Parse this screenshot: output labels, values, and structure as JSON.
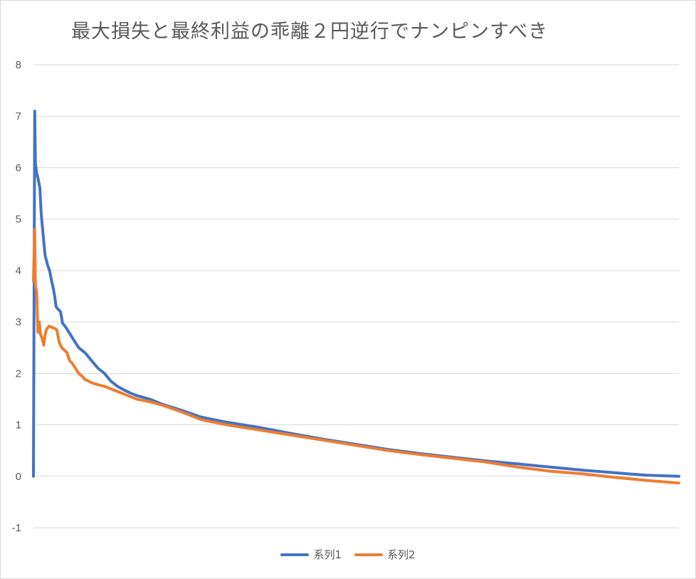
{
  "chart_data": {
    "type": "line",
    "title": "最大損失と最終利益の乖離２円逆行でナンピンすべき",
    "xlabel": "",
    "ylabel": "",
    "ylim": [
      -1,
      8
    ],
    "xlim": [
      0,
      1000
    ],
    "yticks": [
      "8",
      "7",
      "6",
      "5",
      "4",
      "3",
      "2",
      "1",
      "0",
      "-1"
    ],
    "grid": true,
    "legend_position": "bottom",
    "series": [
      {
        "name": "系列1",
        "color": "#4472c4",
        "x": [
          0,
          2,
          3,
          5,
          7,
          10,
          12,
          15,
          18,
          20,
          22,
          25,
          28,
          30,
          33,
          35,
          38,
          42,
          45,
          50,
          55,
          60,
          65,
          70,
          80,
          90,
          100,
          110,
          120,
          130,
          140,
          150,
          160,
          180,
          200,
          230,
          260,
          300,
          350,
          400,
          450,
          500,
          550,
          600,
          650,
          700,
          750,
          800,
          850,
          900,
          950,
          1000
        ],
        "y": [
          0,
          7.1,
          6.1,
          5.9,
          5.8,
          5.6,
          5.1,
          4.7,
          4.3,
          4.2,
          4.1,
          4.0,
          3.8,
          3.7,
          3.5,
          3.3,
          3.25,
          3.2,
          2.98,
          2.9,
          2.8,
          2.7,
          2.6,
          2.5,
          2.4,
          2.25,
          2.1,
          2.0,
          1.85,
          1.75,
          1.68,
          1.62,
          1.57,
          1.5,
          1.4,
          1.28,
          1.15,
          1.05,
          0.95,
          0.83,
          0.72,
          0.62,
          0.52,
          0.44,
          0.37,
          0.3,
          0.24,
          0.18,
          0.12,
          0.07,
          0.02,
          0.0
        ]
      },
      {
        "name": "系列2",
        "color": "#ed7d31",
        "x": [
          0,
          2,
          3,
          5,
          7,
          9,
          11,
          13,
          16,
          18,
          20,
          24,
          28,
          32,
          36,
          40,
          44,
          48,
          52,
          56,
          60,
          65,
          70,
          75,
          80,
          90,
          100,
          110,
          120,
          130,
          140,
          150,
          160,
          180,
          200,
          230,
          260,
          300,
          350,
          400,
          450,
          500,
          550,
          600,
          650,
          700,
          750,
          800,
          850,
          900,
          950,
          1000
        ],
        "y": [
          3.8,
          4.8,
          3.7,
          3.6,
          2.8,
          3.0,
          2.75,
          2.7,
          2.55,
          2.75,
          2.85,
          2.92,
          2.9,
          2.88,
          2.85,
          2.6,
          2.5,
          2.45,
          2.4,
          2.25,
          2.2,
          2.1,
          2.0,
          1.95,
          1.88,
          1.82,
          1.78,
          1.75,
          1.7,
          1.65,
          1.6,
          1.55,
          1.5,
          1.45,
          1.38,
          1.25,
          1.1,
          1.0,
          0.9,
          0.8,
          0.7,
          0.6,
          0.5,
          0.42,
          0.35,
          0.28,
          0.18,
          0.1,
          0.05,
          -0.02,
          -0.08,
          -0.13
        ]
      }
    ]
  }
}
